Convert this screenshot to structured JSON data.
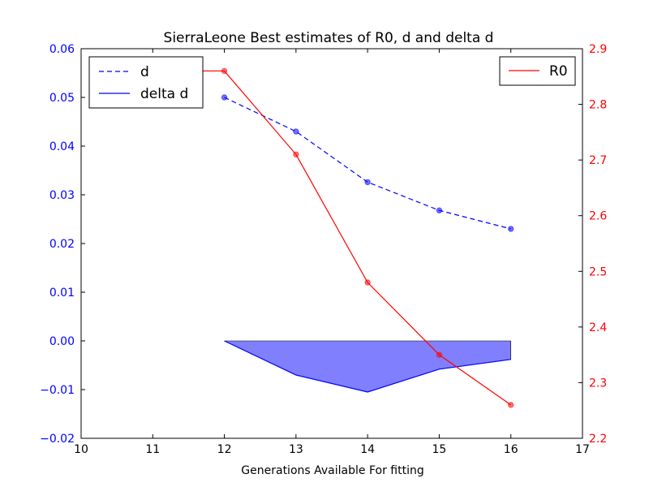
{
  "chart_data": {
    "type": "line",
    "title": "SierraLeone Best estimates of R0, d and delta d",
    "xlabel": "Generations Available For fitting",
    "ylabel": "",
    "y2label": "",
    "xlim": [
      10,
      17
    ],
    "ylim": [
      -0.02,
      0.06
    ],
    "y2lim": [
      2.2,
      2.9
    ],
    "x_ticks": [
      "10",
      "11",
      "12",
      "13",
      "14",
      "15",
      "16",
      "17"
    ],
    "y_ticks": [
      "−0.02",
      "−0.01",
      "0.00",
      "0.01",
      "0.02",
      "0.03",
      "0.04",
      "0.05",
      "0.06"
    ],
    "y2_ticks": [
      "2.2",
      "2.3",
      "2.4",
      "2.5",
      "2.6",
      "2.7",
      "2.8",
      "2.9"
    ],
    "series": [
      {
        "name": "d",
        "axis": "left",
        "style": "dashed",
        "color": "#0000ff",
        "x": [
          12,
          13,
          14,
          15,
          16
        ],
        "y": [
          0.05,
          0.043,
          0.0326,
          0.0268,
          0.023
        ]
      },
      {
        "name": "delta d",
        "axis": "left",
        "style": "filled-area",
        "color": "#0000ff",
        "fill": "#8080ff",
        "x": [
          12,
          13,
          14,
          15,
          16
        ],
        "y": [
          0.0,
          -0.007,
          -0.0105,
          -0.0058,
          -0.0038
        ]
      },
      {
        "name": "R0",
        "axis": "right",
        "style": "solid",
        "color": "#ff0000",
        "x": [
          11,
          12,
          13,
          14,
          15,
          16
        ],
        "y": [
          2.86,
          2.86,
          2.71,
          2.48,
          2.35,
          2.26
        ]
      }
    ],
    "legends": [
      {
        "position": "top-left",
        "entries": [
          "d",
          "delta d"
        ]
      },
      {
        "position": "top-right",
        "entries": [
          "R0"
        ]
      }
    ],
    "grid": false,
    "left_axis_color": "#0000ff",
    "right_axis_color": "#ff0000"
  }
}
